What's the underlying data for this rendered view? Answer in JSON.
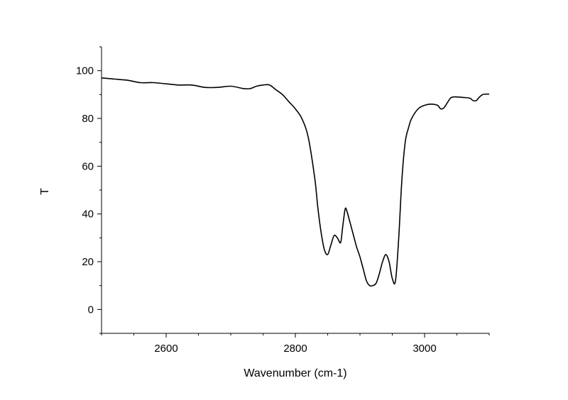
{
  "chart_data": {
    "type": "line",
    "title": "",
    "xlabel": "Wavenumber (cm-1)",
    "ylabel": "T",
    "xlim": [
      2500,
      3100
    ],
    "ylim": [
      -10,
      110
    ],
    "x_ticks": [
      2600,
      2800,
      3000
    ],
    "x_tick_labels": [
      "2600",
      "2800",
      "3000"
    ],
    "y_ticks": [
      0,
      20,
      40,
      60,
      80,
      100
    ],
    "y_tick_labels": [
      "0",
      "20",
      "40",
      "60",
      "80",
      "100"
    ],
    "grid": false,
    "legend": "none",
    "line_color": "#000000",
    "series": [
      {
        "x": [
          2500,
          2520,
          2540,
          2560,
          2580,
          2600,
          2620,
          2640,
          2660,
          2680,
          2700,
          2720,
          2730,
          2740,
          2750,
          2760,
          2770,
          2780,
          2790,
          2800,
          2810,
          2820,
          2830,
          2835,
          2840,
          2845,
          2850,
          2855,
          2860,
          2865,
          2870,
          2873,
          2877,
          2880,
          2885,
          2890,
          2895,
          2900,
          2905,
          2910,
          2915,
          2920,
          2925,
          2930,
          2935,
          2940,
          2945,
          2950,
          2955,
          2960,
          2965,
          2970,
          2975,
          2980,
          2990,
          3000,
          3010,
          3020,
          3025,
          3030,
          3035,
          3040,
          3045,
          3050,
          3060,
          3070,
          3075,
          3080,
          3085,
          3090,
          3095,
          3100
        ],
        "y": [
          97,
          96.5,
          96,
          95,
          95,
          94.5,
          94,
          94,
          93,
          93,
          93.5,
          92.5,
          92.5,
          93.5,
          94,
          94,
          92,
          90,
          87,
          84,
          80,
          72,
          55,
          42,
          32,
          25,
          23,
          27,
          31,
          30,
          28,
          34,
          42,
          41,
          36,
          31,
          26,
          22,
          17,
          12,
          10,
          10,
          11,
          15,
          20,
          23,
          20,
          13,
          12,
          30,
          55,
          70,
          76,
          80,
          84,
          85.5,
          86,
          85.5,
          84,
          84.5,
          86.5,
          88.5,
          89,
          89,
          88.8,
          88.5,
          87.5,
          87.5,
          89,
          90,
          90.2,
          90.2
        ]
      }
    ]
  }
}
